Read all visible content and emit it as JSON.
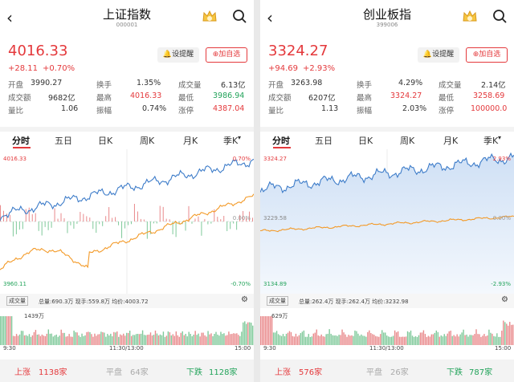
{
  "screens": [
    {
      "title": "上证指数",
      "code": "000001",
      "price": "4016.33",
      "change": "+28.11",
      "change_pct": "+0.70%",
      "remind": "设提醒",
      "favorite": "加自选",
      "stats": [
        [
          "开盘",
          "3990.27",
          "换手",
          "1.35%",
          "成交量",
          "6.13亿"
        ],
        [
          "成交额",
          "9682亿",
          "最高",
          "4016.33",
          "最低",
          "3986.94"
        ],
        [
          "量比",
          "1.06",
          "振幅",
          "0.74%",
          "涨停",
          "4387.04"
        ]
      ],
      "tabs": [
        "分时",
        "五日",
        "日K",
        "周K",
        "月K",
        "季K"
      ],
      "chart": {
        "top_price": "4016.33",
        "top_pct": "0.70%",
        "mid_pct": "0.00%",
        "bottom_price": "3960.11",
        "bottom_pct": "-0.70%"
      },
      "volume": {
        "tab": "成交量",
        "stats": "总量:690.3万 现手:559.8万 均价:4003.72",
        "max": "1439万"
      },
      "times": [
        "9:30",
        "11:30/13:00",
        "15:00"
      ],
      "breadth": {
        "up_label": "上涨",
        "up": "1138家",
        "flat_label": "平盘",
        "flat": "64家",
        "down_label": "下跌",
        "down": "1128家"
      }
    },
    {
      "title": "创业板指",
      "code": "399006",
      "price": "3324.27",
      "change": "+94.69",
      "change_pct": "+2.93%",
      "remind": "设提醒",
      "favorite": "加自选",
      "stats": [
        [
          "开盘",
          "3263.98",
          "换手",
          "4.29%",
          "成交量",
          "2.14亿"
        ],
        [
          "成交额",
          "6207亿",
          "最高",
          "3324.27",
          "最低",
          "3258.69"
        ],
        [
          "量比",
          "1.13",
          "振幅",
          "2.03%",
          "涨停",
          "100000.0"
        ]
      ],
      "tabs": [
        "分时",
        "五日",
        "日K",
        "周K",
        "月K",
        "季K"
      ],
      "chart": {
        "top_price": "3324.27",
        "top_pct": "2.93%",
        "mid_price": "3229.58",
        "mid_pct": "0.00%",
        "bottom_price": "3134.89",
        "bottom_pct": "-2.93%"
      },
      "volume": {
        "tab": "成交量",
        "stats": "总量:262.4万 现手:262.4万 均价:3232.98",
        "max": "629万"
      },
      "times": [
        "9:30",
        "11:30/13:00",
        "15:00"
      ],
      "breadth": {
        "up_label": "上涨",
        "up": "576家",
        "flat_label": "平盘",
        "flat": "26家",
        "down_label": "下跌",
        "down": "787家"
      }
    }
  ]
}
